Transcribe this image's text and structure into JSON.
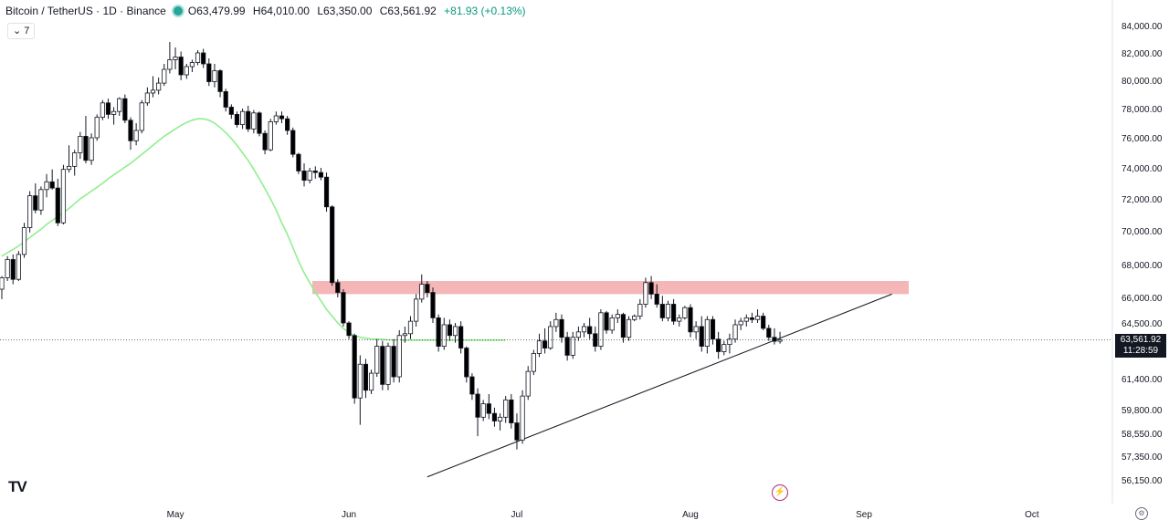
{
  "header": {
    "title": "Bitcoin / TetherUS · 1D · Binance",
    "open": "O63,479.99",
    "high": "H64,010.00",
    "low": "L63,350.00",
    "close": "C63,561.92",
    "change": "+81.93 (+0.13%)",
    "indicator_toggle": "7"
  },
  "price_label": {
    "price": "63,561.92",
    "countdown": "11:28:59"
  },
  "colors": {
    "ma": "#90ee90",
    "resistance": "#f4b6b6",
    "up_candle_border": "#131722",
    "down_candle": "#000000",
    "price_label_bg": "#131722"
  },
  "chart_data": {
    "type": "candlestick",
    "ylabels": [
      "84,000.00",
      "82,000.00",
      "80,000.00",
      "78,000.00",
      "76,000.00",
      "74,000.00",
      "72,000.00",
      "70,000.00",
      "68,000.00",
      "66,000.00",
      "64,500.00",
      "61,400.00",
      "59,800.00",
      "58,550.00",
      "57,350.00",
      "56,150.00"
    ],
    "yticks": [
      84000,
      82000,
      80000,
      78000,
      76000,
      74000,
      72000,
      70000,
      68000,
      66000,
      64500,
      61400,
      59800,
      58550,
      57350,
      56150
    ],
    "xlabels": [
      {
        "label": "May",
        "index": 31
      },
      {
        "label": "Jun",
        "index": 62
      },
      {
        "label": "Jul",
        "index": 92
      },
      {
        "label": "Aug",
        "index": 123
      },
      {
        "label": "Sep",
        "index": 154
      },
      {
        "label": "Oct",
        "index": 184
      }
    ],
    "resistance_zone": [
      66200,
      67000
    ],
    "trendline": {
      "from": {
        "index": 76,
        "price": 56300
      },
      "to": {
        "index": 159,
        "price": 66200
      }
    },
    "ma": [
      68500,
      68700,
      68900,
      69100,
      69350,
      69600,
      69850,
      70100,
      70400,
      70650,
      70900,
      71150,
      71400,
      71700,
      72000,
      72250,
      72500,
      72750,
      73000,
      73300,
      73550,
      73800,
      74050,
      74300,
      74600,
      74900,
      75200,
      75500,
      75800,
      76100,
      76350,
      76600,
      76850,
      77050,
      77200,
      77300,
      77300,
      77200,
      77000,
      76700,
      76350,
      75950,
      75500,
      75000,
      74500,
      73900,
      73300,
      72650,
      72000,
      71300,
      70500,
      69800,
      69000,
      68200,
      67500,
      66900,
      66300,
      65800,
      65300,
      64900,
      64500,
      64200,
      63950,
      63800,
      63700,
      63650,
      63600,
      63600,
      63580,
      63560,
      63550,
      63540,
      63540,
      63540,
      63540,
      63540,
      63540,
      63540,
      63540,
      63540,
      63540,
      63540,
      63540,
      63540,
      63540,
      63540,
      63540,
      63540,
      63540,
      63540,
      63540
    ],
    "ma_start_index": 0,
    "candles": [
      [
        0,
        66500,
        67300,
        65900,
        67200
      ],
      [
        1,
        67200,
        68500,
        67000,
        68300
      ],
      [
        2,
        68300,
        68600,
        66800,
        67100
      ],
      [
        3,
        67100,
        68800,
        67000,
        68600
      ],
      [
        4,
        68600,
        70500,
        68400,
        70200
      ],
      [
        5,
        70200,
        72500,
        69900,
        72200
      ],
      [
        6,
        72200,
        73000,
        71100,
        71300
      ],
      [
        7,
        71300,
        72800,
        71000,
        72600
      ],
      [
        8,
        72600,
        73600,
        72100,
        73100
      ],
      [
        9,
        73100,
        73900,
        72600,
        72700
      ],
      [
        10,
        72700,
        73300,
        70300,
        70500
      ],
      [
        11,
        70500,
        74200,
        70400,
        73900
      ],
      [
        12,
        73900,
        75500,
        73700,
        74100
      ],
      [
        13,
        74100,
        75200,
        73500,
        75000
      ],
      [
        14,
        75000,
        76400,
        74600,
        76100
      ],
      [
        15,
        76100,
        77500,
        74300,
        74500
      ],
      [
        16,
        74500,
        76300,
        74200,
        76000
      ],
      [
        17,
        76000,
        77600,
        75800,
        77400
      ],
      [
        18,
        77400,
        78600,
        77200,
        78400
      ],
      [
        19,
        78400,
        78700,
        77300,
        77600
      ],
      [
        20,
        77600,
        78100,
        76900,
        77800
      ],
      [
        21,
        77800,
        78800,
        77500,
        78700
      ],
      [
        22,
        78700,
        79000,
        77000,
        77200
      ],
      [
        23,
        77200,
        77400,
        75200,
        75800
      ],
      [
        24,
        75800,
        77000,
        75500,
        76500
      ],
      [
        25,
        76500,
        78600,
        76300,
        78400
      ],
      [
        26,
        78400,
        79500,
        78200,
        79100
      ],
      [
        27,
        79100,
        80300,
        78800,
        79300
      ],
      [
        28,
        79300,
        80200,
        79000,
        79800
      ],
      [
        29,
        79800,
        81200,
        79600,
        80800
      ],
      [
        30,
        80800,
        82800,
        80500,
        81500
      ],
      [
        31,
        81500,
        82400,
        80800,
        81700
      ],
      [
        32,
        81700,
        82100,
        80000,
        80400
      ],
      [
        33,
        80400,
        81200,
        80100,
        81000
      ],
      [
        34,
        81000,
        81500,
        80600,
        81300
      ],
      [
        35,
        81300,
        82200,
        81100,
        82000
      ],
      [
        36,
        82000,
        82300,
        80900,
        81200
      ],
      [
        37,
        81200,
        81600,
        79600,
        79900
      ],
      [
        38,
        79900,
        81200,
        79500,
        80700
      ],
      [
        39,
        80700,
        80800,
        78800,
        79200
      ],
      [
        40,
        79200,
        79400,
        77800,
        78100
      ],
      [
        41,
        78100,
        78300,
        77300,
        77600
      ],
      [
        42,
        77600,
        77800,
        76700,
        76900
      ],
      [
        43,
        76900,
        78000,
        76600,
        77800
      ],
      [
        44,
        77800,
        78200,
        76400,
        76600
      ],
      [
        45,
        76600,
        77900,
        76300,
        77700
      ],
      [
        46,
        77700,
        77800,
        76100,
        76300
      ],
      [
        47,
        76300,
        76500,
        74900,
        75200
      ],
      [
        48,
        75200,
        77300,
        75100,
        77100
      ],
      [
        49,
        77100,
        77800,
        76900,
        77500
      ],
      [
        50,
        77500,
        77800,
        77000,
        77300
      ],
      [
        51,
        77300,
        77500,
        76200,
        76500
      ],
      [
        52,
        76500,
        76700,
        74700,
        74900
      ],
      [
        53,
        74900,
        75000,
        73600,
        73800
      ],
      [
        54,
        73800,
        74300,
        72800,
        73200
      ],
      [
        55,
        73200,
        74000,
        73000,
        73800
      ],
      [
        56,
        73800,
        74100,
        73300,
        73700
      ],
      [
        57,
        73700,
        74000,
        73200,
        73400
      ],
      [
        58,
        73400,
        73700,
        71200,
        71500
      ],
      [
        59,
        71500,
        71600,
        66700,
        66900
      ],
      [
        60,
        66900,
        67100,
        66000,
        66300
      ],
      [
        61,
        66300,
        66500,
        64300,
        64500
      ],
      [
        62,
        64500,
        64600,
        63600,
        63800
      ],
      [
        63,
        63800,
        63900,
        60100,
        60400
      ],
      [
        64,
        60400,
        62700,
        59000,
        62200
      ],
      [
        65,
        62200,
        62500,
        60400,
        60800
      ],
      [
        66,
        60800,
        61900,
        60600,
        61700
      ],
      [
        67,
        61700,
        63600,
        61500,
        63200
      ],
      [
        68,
        63200,
        63500,
        60800,
        61100
      ],
      [
        69,
        61100,
        63400,
        60800,
        63200
      ],
      [
        70,
        63200,
        63600,
        61200,
        61500
      ],
      [
        71,
        61500,
        64100,
        61200,
        63800
      ],
      [
        72,
        63800,
        64300,
        63400,
        63900
      ],
      [
        73,
        63900,
        64900,
        63600,
        64600
      ],
      [
        74,
        64600,
        66200,
        64300,
        65900
      ],
      [
        75,
        65900,
        67400,
        65700,
        66800
      ],
      [
        76,
        66800,
        67000,
        66000,
        66300
      ],
      [
        77,
        66300,
        66600,
        64500,
        64800
      ],
      [
        78,
        64800,
        65000,
        62900,
        63200
      ],
      [
        79,
        63200,
        64800,
        63000,
        64400
      ],
      [
        80,
        64400,
        64700,
        63500,
        63800
      ],
      [
        81,
        63800,
        64500,
        63400,
        64300
      ],
      [
        82,
        64300,
        64600,
        62800,
        63100
      ],
      [
        83,
        63100,
        63200,
        61200,
        61500
      ],
      [
        84,
        61500,
        61700,
        60300,
        60600
      ],
      [
        85,
        60600,
        60900,
        58400,
        59400
      ],
      [
        86,
        59400,
        60300,
        59200,
        60100
      ],
      [
        87,
        60100,
        60600,
        59300,
        59600
      ],
      [
        88,
        59600,
        59900,
        58900,
        59200
      ],
      [
        89,
        59200,
        59600,
        58700,
        59400
      ],
      [
        90,
        59400,
        60500,
        59100,
        60300
      ],
      [
        91,
        60300,
        60600,
        58800,
        59100
      ],
      [
        92,
        59100,
        59600,
        57700,
        58200
      ],
      [
        93,
        58200,
        60800,
        58000,
        60500
      ],
      [
        94,
        60500,
        62100,
        60300,
        61800
      ],
      [
        95,
        61800,
        63000,
        61600,
        62800
      ],
      [
        96,
        62800,
        63900,
        62600,
        63500
      ],
      [
        97,
        63500,
        64200,
        62800,
        63100
      ],
      [
        98,
        63100,
        64600,
        63000,
        64300
      ],
      [
        99,
        64300,
        65100,
        64000,
        64700
      ],
      [
        100,
        64700,
        65000,
        63400,
        63700
      ],
      [
        101,
        63700,
        64000,
        62400,
        62700
      ],
      [
        102,
        62700,
        64000,
        62500,
        63700
      ],
      [
        103,
        63700,
        64300,
        63500,
        64000
      ],
      [
        104,
        64000,
        64500,
        63700,
        64300
      ],
      [
        105,
        64300,
        64800,
        63600,
        63900
      ],
      [
        106,
        63900,
        64300,
        62900,
        63200
      ],
      [
        107,
        63200,
        65300,
        63000,
        65100
      ],
      [
        108,
        65100,
        65200,
        63900,
        64100
      ],
      [
        109,
        64100,
        65000,
        63900,
        64800
      ],
      [
        110,
        64800,
        65300,
        64500,
        65000
      ],
      [
        111,
        65000,
        65100,
        63400,
        63700
      ],
      [
        112,
        63700,
        64900,
        63500,
        64700
      ],
      [
        113,
        64700,
        65000,
        64600,
        64900
      ],
      [
        114,
        64900,
        65900,
        64700,
        65600
      ],
      [
        115,
        65600,
        67200,
        65400,
        66900
      ],
      [
        116,
        66900,
        67300,
        65900,
        66200
      ],
      [
        117,
        66200,
        66800,
        65400,
        65600
      ],
      [
        118,
        65600,
        66100,
        64600,
        64800
      ],
      [
        119,
        64800,
        65800,
        64600,
        65600
      ],
      [
        120,
        65600,
        65900,
        64400,
        64600
      ],
      [
        121,
        64600,
        65000,
        64300,
        64800
      ],
      [
        122,
        64800,
        65500,
        64700,
        65400
      ],
      [
        123,
        65400,
        65600,
        63700,
        64000
      ],
      [
        124,
        64000,
        64600,
        63600,
        64300
      ],
      [
        125,
        64300,
        64900,
        62900,
        63200
      ],
      [
        126,
        63200,
        64900,
        62800,
        64700
      ],
      [
        127,
        64700,
        64900,
        63300,
        63600
      ],
      [
        128,
        63600,
        64000,
        62500,
        62900
      ],
      [
        129,
        62900,
        63500,
        62700,
        63300
      ],
      [
        130,
        63300,
        63900,
        62800,
        63600
      ],
      [
        131,
        63600,
        64700,
        63400,
        64400
      ],
      [
        132,
        64400,
        64800,
        64100,
        64600
      ],
      [
        133,
        64600,
        65000,
        64300,
        64800
      ],
      [
        134,
        64800,
        65100,
        64500,
        64700
      ],
      [
        135,
        64700,
        65300,
        64500,
        64900
      ],
      [
        136,
        64900,
        65100,
        64100,
        64200
      ],
      [
        137,
        64200,
        64400,
        63500,
        63700
      ],
      [
        138,
        63700,
        64200,
        63300,
        63480
      ],
      [
        139,
        63480,
        64010,
        63350,
        63562
      ]
    ]
  }
}
